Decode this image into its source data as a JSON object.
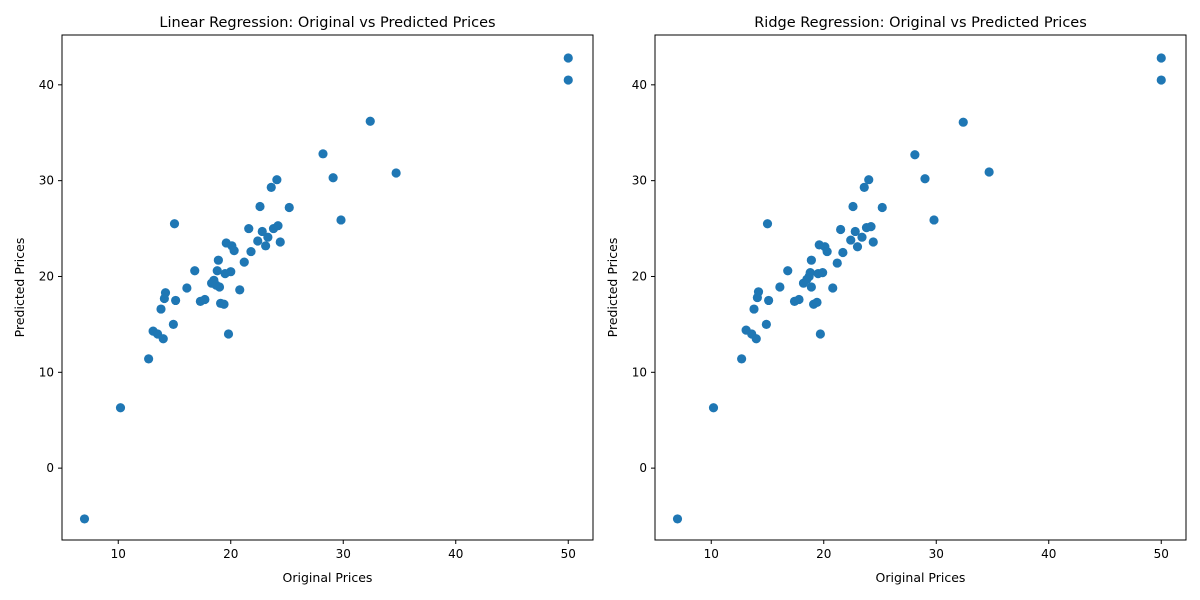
{
  "chart_data": [
    {
      "type": "scatter",
      "title": "Linear Regression: Original vs Predicted Prices",
      "xlabel": "Original Prices",
      "ylabel": "Predicted Prices",
      "xlim": [
        5,
        52.2
      ],
      "ylim": [
        -7.5,
        45.2
      ],
      "xticks": [
        10,
        20,
        30,
        40,
        50
      ],
      "yticks": [
        0,
        10,
        20,
        30,
        40
      ],
      "grid": false,
      "marker_color": "#1f77b4",
      "points": [
        [
          7.0,
          -5.3
        ],
        [
          10.2,
          6.3
        ],
        [
          12.7,
          11.4
        ],
        [
          13.1,
          14.3
        ],
        [
          13.5,
          14.0
        ],
        [
          13.8,
          16.6
        ],
        [
          14.0,
          13.5
        ],
        [
          14.1,
          17.7
        ],
        [
          14.2,
          18.3
        ],
        [
          14.9,
          15.0
        ],
        [
          15.0,
          25.5
        ],
        [
          15.1,
          17.5
        ],
        [
          16.1,
          18.8
        ],
        [
          16.8,
          20.6
        ],
        [
          17.3,
          17.4
        ],
        [
          17.7,
          17.6
        ],
        [
          18.3,
          19.3
        ],
        [
          18.5,
          19.6
        ],
        [
          18.7,
          19.1
        ],
        [
          18.8,
          20.6
        ],
        [
          18.9,
          21.7
        ],
        [
          19.0,
          18.9
        ],
        [
          19.1,
          17.2
        ],
        [
          19.4,
          17.1
        ],
        [
          19.5,
          20.3
        ],
        [
          19.6,
          23.5
        ],
        [
          19.8,
          14.0
        ],
        [
          20.0,
          20.5
        ],
        [
          20.1,
          23.2
        ],
        [
          20.3,
          22.7
        ],
        [
          20.8,
          18.6
        ],
        [
          21.2,
          21.5
        ],
        [
          21.6,
          25.0
        ],
        [
          21.8,
          22.6
        ],
        [
          22.4,
          23.7
        ],
        [
          22.6,
          27.3
        ],
        [
          22.8,
          24.7
        ],
        [
          23.1,
          23.2
        ],
        [
          23.3,
          24.1
        ],
        [
          23.6,
          29.3
        ],
        [
          23.8,
          25.0
        ],
        [
          24.1,
          30.1
        ],
        [
          24.2,
          25.3
        ],
        [
          24.4,
          23.6
        ],
        [
          25.2,
          27.2
        ],
        [
          28.2,
          32.8
        ],
        [
          29.1,
          30.3
        ],
        [
          29.8,
          25.9
        ],
        [
          32.4,
          36.2
        ],
        [
          34.7,
          30.8
        ],
        [
          50.0,
          42.8
        ],
        [
          50.0,
          40.5
        ]
      ]
    },
    {
      "type": "scatter",
      "title": "Ridge Regression: Original vs Predicted Prices",
      "xlabel": "Original Prices",
      "ylabel": "Predicted Prices",
      "xlim": [
        5,
        52.2
      ],
      "ylim": [
        -7.5,
        45.2
      ],
      "xticks": [
        10,
        20,
        30,
        40,
        50
      ],
      "yticks": [
        0,
        10,
        20,
        30,
        40
      ],
      "grid": false,
      "marker_color": "#1f77b4",
      "points": [
        [
          7.0,
          -5.3
        ],
        [
          10.2,
          6.3
        ],
        [
          12.7,
          11.4
        ],
        [
          13.1,
          14.4
        ],
        [
          13.6,
          14.0
        ],
        [
          13.8,
          16.6
        ],
        [
          14.0,
          13.5
        ],
        [
          14.1,
          17.8
        ],
        [
          14.2,
          18.4
        ],
        [
          14.9,
          15.0
        ],
        [
          15.0,
          25.5
        ],
        [
          15.1,
          17.5
        ],
        [
          16.1,
          18.9
        ],
        [
          16.8,
          20.6
        ],
        [
          17.4,
          17.4
        ],
        [
          17.8,
          17.6
        ],
        [
          18.2,
          19.3
        ],
        [
          18.5,
          19.7
        ],
        [
          18.7,
          20.0
        ],
        [
          18.8,
          20.4
        ],
        [
          18.9,
          21.7
        ],
        [
          18.9,
          18.9
        ],
        [
          19.1,
          17.1
        ],
        [
          19.4,
          17.3
        ],
        [
          19.5,
          20.3
        ],
        [
          19.6,
          23.3
        ],
        [
          19.7,
          14.0
        ],
        [
          19.9,
          20.4
        ],
        [
          20.1,
          23.1
        ],
        [
          20.3,
          22.6
        ],
        [
          20.8,
          18.8
        ],
        [
          21.2,
          21.4
        ],
        [
          21.5,
          24.9
        ],
        [
          21.7,
          22.5
        ],
        [
          22.4,
          23.8
        ],
        [
          22.6,
          27.3
        ],
        [
          22.8,
          24.7
        ],
        [
          23.0,
          23.1
        ],
        [
          23.4,
          24.1
        ],
        [
          23.6,
          29.3
        ],
        [
          23.8,
          25.1
        ],
        [
          24.0,
          30.1
        ],
        [
          24.2,
          25.2
        ],
        [
          24.4,
          23.6
        ],
        [
          25.2,
          27.2
        ],
        [
          28.1,
          32.7
        ],
        [
          29.0,
          30.2
        ],
        [
          29.8,
          25.9
        ],
        [
          32.4,
          36.1
        ],
        [
          34.7,
          30.9
        ],
        [
          50.0,
          42.8
        ],
        [
          50.0,
          40.5
        ]
      ]
    }
  ]
}
